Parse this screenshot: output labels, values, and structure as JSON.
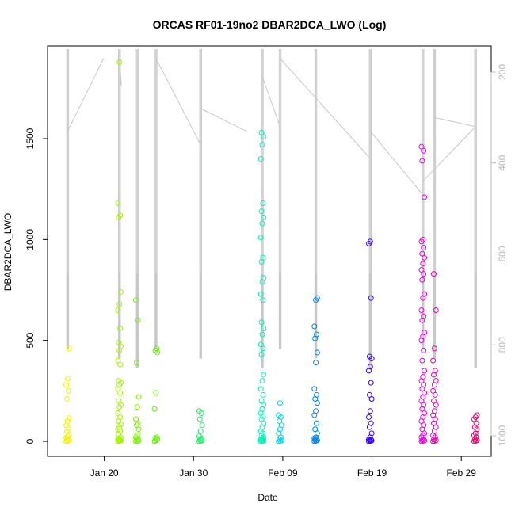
{
  "chart_data": {
    "type": "scatter",
    "title": "ORCAS RF01-19no2 DBAR2DCA_LWO (Log)",
    "xlabel": "Date",
    "ylabel": "DBAR2DCA_LWO",
    "x_ticks": [
      "Jan 20",
      "Jan 30",
      "Feb 09",
      "Feb 19",
      "Feb 29"
    ],
    "y_ticks": [
      "0",
      "500",
      "1000",
      "1500"
    ],
    "y2_ticks": [
      "200",
      "400",
      "600",
      "800",
      "1000"
    ],
    "xlim": [
      "2016-01-14",
      "2016-03-03"
    ],
    "ylim": [
      0,
      1900
    ],
    "y2lim": [
      1030,
      170
    ],
    "y2_reversed": true,
    "grid": false,
    "legend": "none",
    "series_note_colors": "flights colored by rainbow from yellow to magenta",
    "series": [
      {
        "date": "2016-01-15.9",
        "color": "#f3f500",
        "values": [
          0,
          2,
          5,
          8,
          12,
          18,
          25,
          35,
          50,
          65,
          80,
          100,
          115,
          210,
          250,
          280,
          310,
          460
        ]
      },
      {
        "date": "2016-01-21.7",
        "color": "#a7f500",
        "values": [
          0,
          2,
          4,
          6,
          8,
          10,
          15,
          20,
          35,
          50,
          60,
          70,
          85,
          100,
          120,
          140,
          170,
          180,
          200,
          240,
          260,
          280,
          290,
          300,
          380,
          400,
          450,
          470,
          490,
          560,
          650,
          680,
          740,
          1110,
          1120,
          1180,
          1880
        ]
      },
      {
        "date": "2016-01-23.7",
        "color": "#7cf300",
        "values": [
          0,
          2,
          4,
          8,
          12,
          20,
          30,
          60,
          80,
          90,
          110,
          170,
          220,
          390,
          600,
          700
        ]
      },
      {
        "date": "2016-01-25.8",
        "color": "#5ef300",
        "values": [
          0,
          5,
          10,
          15,
          20,
          160,
          240,
          440,
          450,
          460
        ]
      },
      {
        "date": "2016-01-30.8",
        "color": "#20f36a",
        "values": [
          0,
          2,
          5,
          8,
          15,
          25,
          50,
          80,
          110,
          140,
          150
        ]
      },
      {
        "date": "2016-02-06.7",
        "color": "#00f3b8",
        "values": [
          0,
          2,
          4,
          6,
          8,
          10,
          15,
          20,
          30,
          40,
          50,
          70,
          90,
          110,
          125,
          140,
          160,
          180,
          200,
          230,
          260,
          300,
          330,
          430,
          460,
          480,
          530,
          560,
          590,
          700,
          730,
          790,
          810,
          890,
          910,
          1010,
          1080,
          1110,
          1140,
          1180,
          1400,
          1470,
          1510,
          1530
        ]
      },
      {
        "date": "2016-02-08.7",
        "color": "#00d8f3",
        "values": [
          0,
          2,
          5,
          10,
          20,
          40,
          60,
          80,
          100,
          120,
          130,
          190
        ]
      },
      {
        "date": "2016-02-12.7",
        "color": "#0085f3",
        "values": [
          0,
          2,
          5,
          8,
          12,
          15,
          20,
          40,
          60,
          90,
          130,
          150,
          190,
          210,
          230,
          260,
          390,
          440,
          510,
          530,
          570,
          700,
          710
        ]
      },
      {
        "date": "2016-02-18.8",
        "color": "#3a00f3",
        "values": [
          0,
          2,
          4,
          6,
          8,
          10,
          20,
          40,
          70,
          90,
          120,
          150,
          210,
          230,
          290,
          350,
          370,
          410,
          420,
          710,
          980,
          990
        ]
      },
      {
        "date": "2016-02-24.7",
        "color": "#f000e8",
        "values": [
          0,
          2,
          4,
          6,
          10,
          20,
          30,
          40,
          60,
          80,
          100,
          120,
          140,
          160,
          180,
          200,
          220,
          240,
          260,
          280,
          300,
          320,
          350,
          400,
          450,
          500,
          520,
          540,
          600,
          620,
          650,
          710,
          730,
          800,
          830,
          850,
          880,
          910,
          930,
          960,
          990,
          1000,
          1210,
          1390,
          1440,
          1460
        ]
      },
      {
        "date": "2016-02-26.0",
        "color": "#f000b0",
        "values": [
          0,
          2,
          5,
          10,
          20,
          30,
          50,
          70,
          90,
          110,
          130,
          150,
          180,
          200,
          230,
          250,
          280,
          300,
          330,
          350,
          400,
          460,
          650,
          830
        ]
      },
      {
        "date": "2016-03-01.6",
        "color": "#f00070",
        "values": [
          0,
          2,
          5,
          10,
          20,
          30,
          40,
          60,
          70,
          90,
          110,
          120,
          130
        ]
      }
    ]
  }
}
